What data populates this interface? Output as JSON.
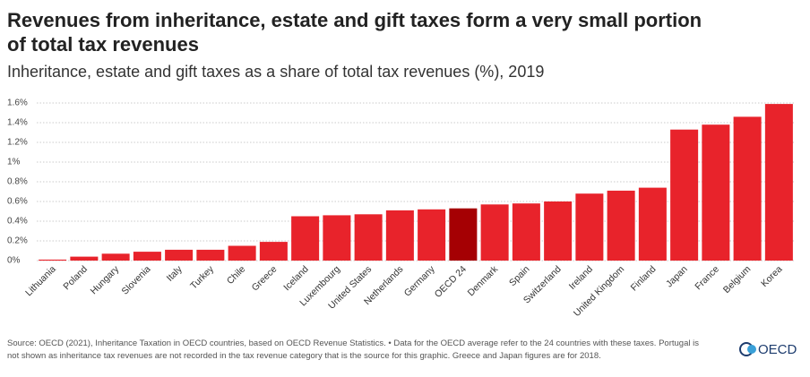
{
  "chart_data": {
    "type": "bar",
    "title_lines": [
      "Revenues from inheritance, estate and gift taxes form a very small portion",
      "of total tax revenues"
    ],
    "subtitle": "Inheritance, estate and gift taxes as a share of total tax revenues (%), 2019",
    "categories": [
      "Lithuania",
      "Poland",
      "Hungary",
      "Slovenia",
      "Italy",
      "Turkey",
      "Chile",
      "Greece",
      "Iceland",
      "Luxembourg",
      "United States",
      "Netherlands",
      "Germany",
      "OECD 24",
      "Denmark",
      "Spain",
      "Switzerland",
      "Ireland",
      "United Kingdom",
      "Finland",
      "Japan",
      "France",
      "Belgium",
      "Korea"
    ],
    "values": [
      0.01,
      0.04,
      0.07,
      0.09,
      0.11,
      0.11,
      0.15,
      0.19,
      0.45,
      0.46,
      0.47,
      0.51,
      0.52,
      0.53,
      0.57,
      0.58,
      0.6,
      0.68,
      0.71,
      0.74,
      1.33,
      1.38,
      1.46,
      1.59
    ],
    "colors": [
      "#e8232b",
      "#e8232b",
      "#e8232b",
      "#e8232b",
      "#e8232b",
      "#e8232b",
      "#e8232b",
      "#e8232b",
      "#e8232b",
      "#e8232b",
      "#e8232b",
      "#e8232b",
      "#e8232b",
      "#a50003",
      "#e8232b",
      "#e8232b",
      "#e8232b",
      "#e8232b",
      "#e8232b",
      "#e8232b",
      "#e8232b",
      "#e8232b",
      "#e8232b",
      "#e8232b"
    ],
    "ylim": [
      0,
      1.6
    ],
    "yticks": [
      {
        "value": 0,
        "label": "0%"
      },
      {
        "value": 0.2,
        "label": "0.2%"
      },
      {
        "value": 0.4,
        "label": "0.4%"
      },
      {
        "value": 0.6,
        "label": "0.6%"
      },
      {
        "value": 0.8,
        "label": "0.8%"
      },
      {
        "value": 1,
        "label": "1%"
      },
      {
        "value": 1.2,
        "label": "1.2%"
      },
      {
        "value": 1.4,
        "label": "1.4%"
      },
      {
        "value": 1.6,
        "label": "1.6%"
      }
    ],
    "grid": true,
    "source_lines": [
      "Source: OECD (2021), Inheritance Taxation in OECD countries, based on OECD Revenue Statistics. • Data for the OECD average refer to the 24 countries with these taxes. Portugal is",
      "not shown as inheritance tax revenues are not recorded in the tax revenue category that is the source for this graphic. Greece and Japan figures are for 2018."
    ],
    "logo": "OECD"
  }
}
